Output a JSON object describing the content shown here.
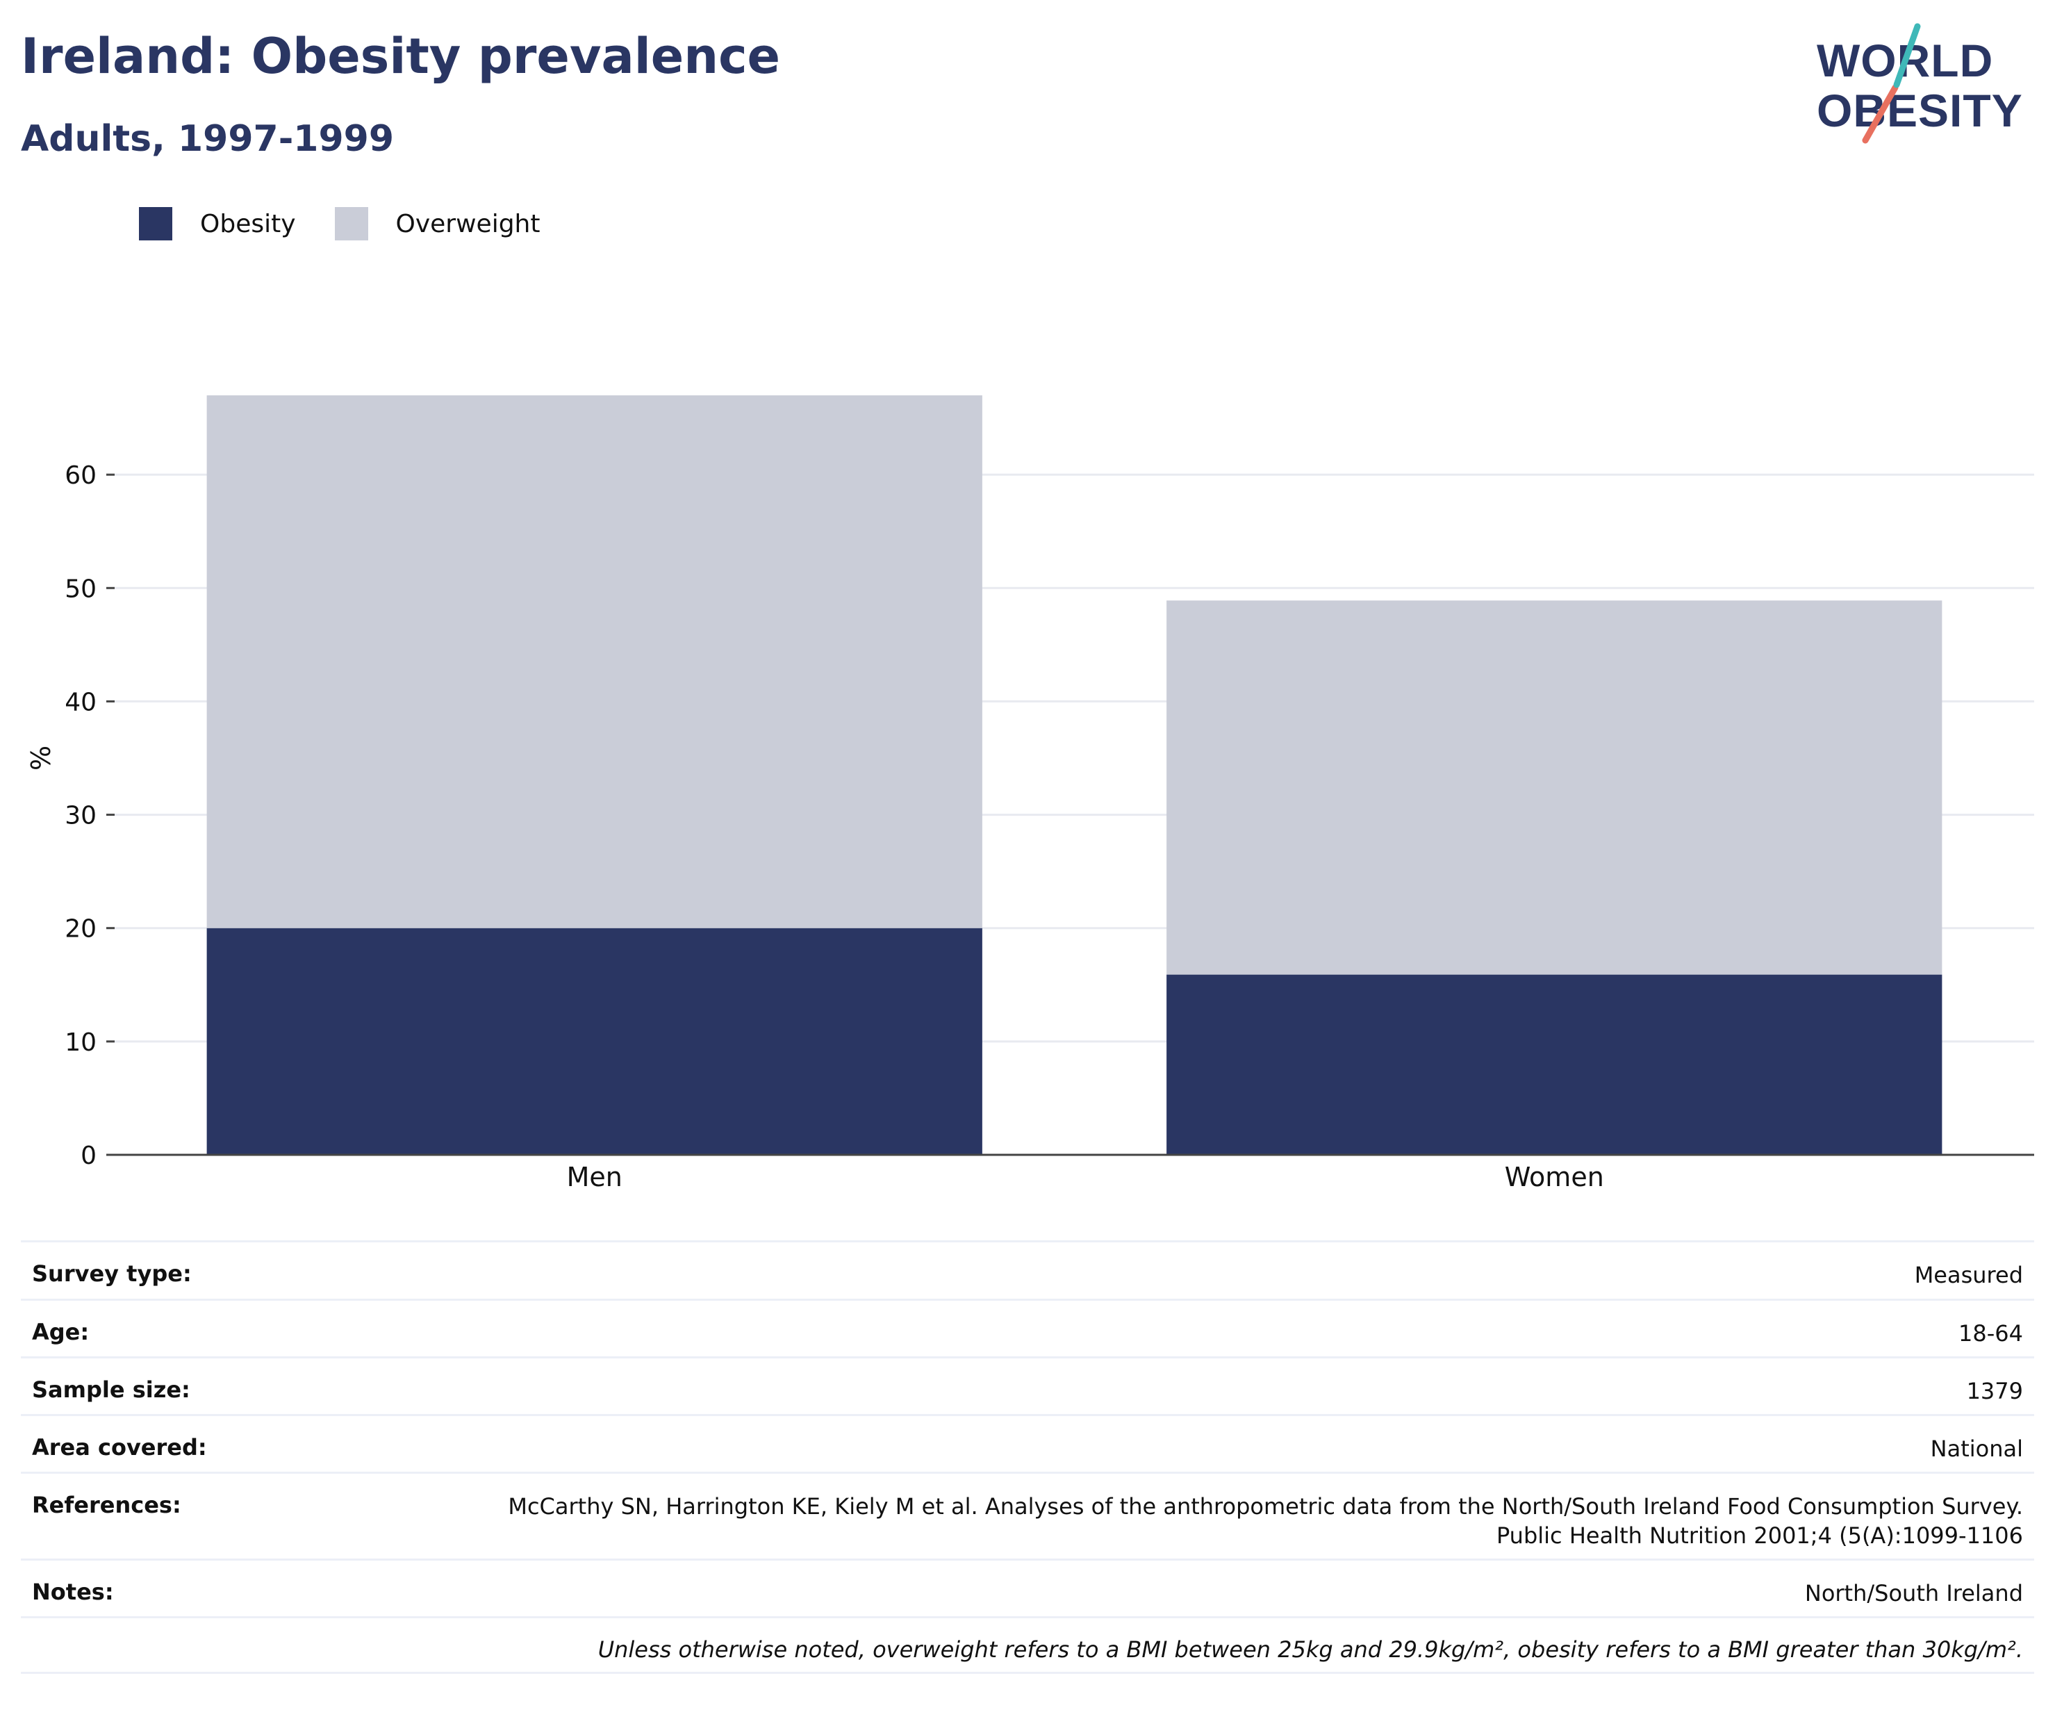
{
  "title": "Ireland: Obesity prevalence",
  "subtitle": "Adults, 1997-1999",
  "logo": {
    "line1": "WORLD",
    "line2": "OBESITY"
  },
  "colors": {
    "obesity": "#2a3663",
    "overweight": "#cacdd8",
    "grid": "#e8eaf0",
    "axis": "#444444",
    "title": "#2a3663",
    "logo_teal": "#3fb8b8",
    "logo_coral": "#e8705f"
  },
  "legend": [
    {
      "label": "Obesity",
      "color": "#2a3663"
    },
    {
      "label": "Overweight",
      "color": "#cacdd8"
    }
  ],
  "chart_data": {
    "type": "bar",
    "stacked": true,
    "categories": [
      "Men",
      "Women"
    ],
    "series": [
      {
        "name": "Obesity",
        "values": [
          20,
          15.9
        ]
      },
      {
        "name": "Overweight",
        "values": [
          47,
          33
        ]
      }
    ],
    "ylabel": "%",
    "xlabel": "",
    "ylim": [
      0,
      70
    ],
    "yticks": [
      0,
      10,
      20,
      30,
      40,
      50,
      60
    ],
    "grid": true
  },
  "info": {
    "rows": [
      {
        "label": "Survey type:",
        "value": "Measured"
      },
      {
        "label": "Age:",
        "value": "18-64"
      },
      {
        "label": "Sample size:",
        "value": "1379"
      },
      {
        "label": "Area covered:",
        "value": "National"
      },
      {
        "label": "References:",
        "value": "McCarthy SN, Harrington KE, Kiely M et al. Analyses of the anthropometric data from the North/South Ireland Food Consumption Survey.",
        "value2": "Public Health Nutrition 2001;4 (5(A):1099-1106"
      },
      {
        "label": "Notes:",
        "value": "North/South Ireland"
      }
    ],
    "footnote": "Unless otherwise noted, overweight refers to a BMI between 25kg and 29.9kg/m², obesity refers to a BMI greater than 30kg/m²."
  }
}
